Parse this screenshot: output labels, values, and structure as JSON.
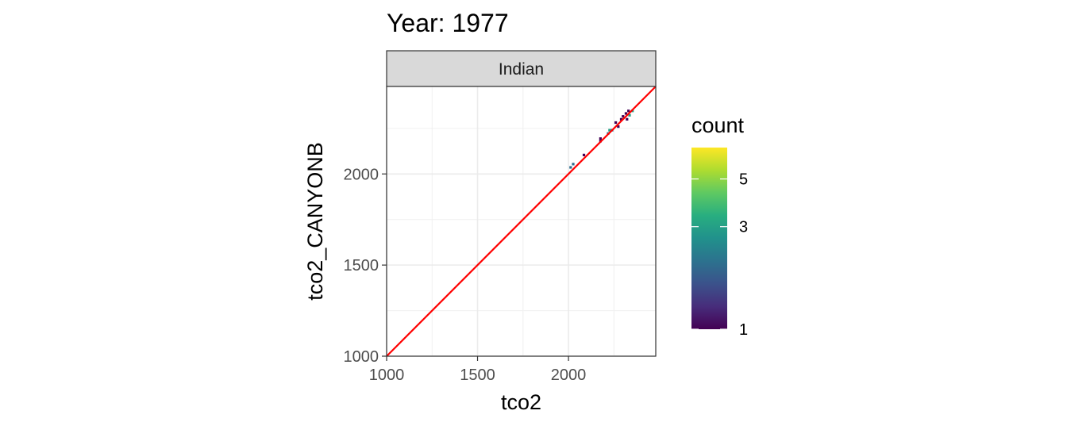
{
  "chart_data": {
    "type": "heatmap",
    "title": "Year: 1977",
    "facet_label": "Indian",
    "xlabel": "tco2",
    "ylabel": "tco2_CANYONB",
    "xlim": [
      1000,
      2480
    ],
    "ylim": [
      1000,
      2480
    ],
    "x_ticks": [
      1000,
      1500,
      2000
    ],
    "y_ticks": [
      1000,
      1500,
      2000
    ],
    "x_tick_labels": [
      "1000",
      "1500",
      "2000"
    ],
    "y_tick_labels": [
      "1000",
      "1500",
      "2000"
    ],
    "grid": true,
    "identity_line": {
      "color": "#ff0000",
      "from": [
        1000,
        1000
      ],
      "to": [
        2480,
        2480
      ]
    },
    "bin_width": 14,
    "cells": [
      {
        "x": 2012,
        "y": 2036,
        "count": 2
      },
      {
        "x": 2026,
        "y": 2054,
        "count": 2
      },
      {
        "x": 2085,
        "y": 2104,
        "count": 1
      },
      {
        "x": 2176,
        "y": 2180,
        "count": 1
      },
      {
        "x": 2176,
        "y": 2194,
        "count": 1
      },
      {
        "x": 2218,
        "y": 2222,
        "count": 2
      },
      {
        "x": 2226,
        "y": 2240,
        "count": 3
      },
      {
        "x": 2240,
        "y": 2240,
        "count": 2
      },
      {
        "x": 2260,
        "y": 2282,
        "count": 1
      },
      {
        "x": 2274,
        "y": 2260,
        "count": 1
      },
      {
        "x": 2290,
        "y": 2300,
        "count": 1
      },
      {
        "x": 2300,
        "y": 2316,
        "count": 1
      },
      {
        "x": 2316,
        "y": 2332,
        "count": 1
      },
      {
        "x": 2322,
        "y": 2300,
        "count": 1
      },
      {
        "x": 2330,
        "y": 2346,
        "count": 1
      },
      {
        "x": 2336,
        "y": 2322,
        "count": 3
      },
      {
        "x": 2352,
        "y": 2346,
        "count": 3
      }
    ],
    "legend": {
      "title": "count",
      "position": "right",
      "scale": "log",
      "range": [
        1,
        7
      ],
      "breaks": [
        1,
        3,
        5
      ],
      "break_labels": [
        "1",
        "3",
        "5"
      ],
      "colormap": "viridis"
    }
  }
}
